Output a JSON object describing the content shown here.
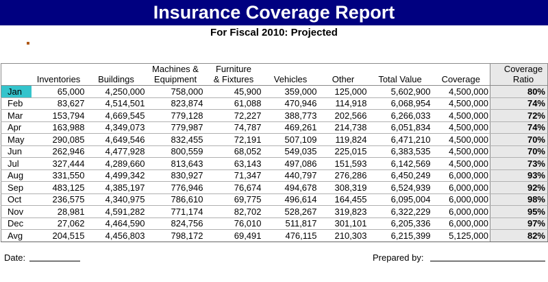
{
  "title": "Insurance Coverage Report",
  "subtitle": "For Fiscal 2010: Projected",
  "headers": [
    "Inventories",
    "Buildings",
    "Machines & Equipment",
    "Furniture & Fixtures",
    "Vehicles",
    "Other",
    "Total Value",
    "Coverage",
    "Coverage Ratio"
  ],
  "rows": [
    {
      "month": "Jan",
      "cells": [
        "65,000",
        "4,250,000",
        "758,000",
        "45,900",
        "359,000",
        "125,000",
        "5,602,900",
        "4,500,000"
      ],
      "ratio": "80%"
    },
    {
      "month": "Feb",
      "cells": [
        "83,627",
        "4,514,501",
        "823,874",
        "61,088",
        "470,946",
        "114,918",
        "6,068,954",
        "4,500,000"
      ],
      "ratio": "74%"
    },
    {
      "month": "Mar",
      "cells": [
        "153,794",
        "4,669,545",
        "779,128",
        "72,227",
        "388,773",
        "202,566",
        "6,266,033",
        "4,500,000"
      ],
      "ratio": "72%"
    },
    {
      "month": "Apr",
      "cells": [
        "163,988",
        "4,349,073",
        "779,987",
        "74,787",
        "469,261",
        "214,738",
        "6,051,834",
        "4,500,000"
      ],
      "ratio": "74%"
    },
    {
      "month": "May",
      "cells": [
        "290,085",
        "4,649,546",
        "832,455",
        "72,191",
        "507,109",
        "119,824",
        "6,471,210",
        "4,500,000"
      ],
      "ratio": "70%"
    },
    {
      "month": "Jun",
      "cells": [
        "262,946",
        "4,477,928",
        "800,559",
        "68,052",
        "549,035",
        "225,015",
        "6,383,535",
        "4,500,000"
      ],
      "ratio": "70%"
    },
    {
      "month": "Jul",
      "cells": [
        "327,444",
        "4,289,660",
        "813,643",
        "63,143",
        "497,086",
        "151,593",
        "6,142,569",
        "4,500,000"
      ],
      "ratio": "73%"
    },
    {
      "month": "Aug",
      "cells": [
        "331,550",
        "4,499,342",
        "830,927",
        "71,347",
        "440,797",
        "276,286",
        "6,450,249",
        "6,000,000"
      ],
      "ratio": "93%"
    },
    {
      "month": "Sep",
      "cells": [
        "483,125",
        "4,385,197",
        "776,946",
        "76,674",
        "494,678",
        "308,319",
        "6,524,939",
        "6,000,000"
      ],
      "ratio": "92%"
    },
    {
      "month": "Oct",
      "cells": [
        "236,575",
        "4,340,975",
        "786,610",
        "69,775",
        "496,614",
        "164,455",
        "6,095,004",
        "6,000,000"
      ],
      "ratio": "98%"
    },
    {
      "month": "Nov",
      "cells": [
        "28,981",
        "4,591,282",
        "771,174",
        "82,702",
        "528,267",
        "319,823",
        "6,322,229",
        "6,000,000"
      ],
      "ratio": "95%"
    },
    {
      "month": "Dec",
      "cells": [
        "27,062",
        "4,464,590",
        "824,756",
        "76,010",
        "511,817",
        "301,101",
        "6,205,336",
        "6,000,000"
      ],
      "ratio": "97%"
    }
  ],
  "avg": {
    "month": "Avg",
    "cells": [
      "204,515",
      "4,456,803",
      "798,172",
      "69,491",
      "476,115",
      "210,303",
      "6,215,399",
      "5,125,000"
    ],
    "ratio": "82%"
  },
  "footer": {
    "date_label": "Date:",
    "prepared_label": "Prepared by:"
  },
  "colors": {
    "title_bg": "#000080",
    "title_text": "#ffffff",
    "selected_cell": "#34c4cc",
    "ratio_bg": "#e8e8e8"
  }
}
